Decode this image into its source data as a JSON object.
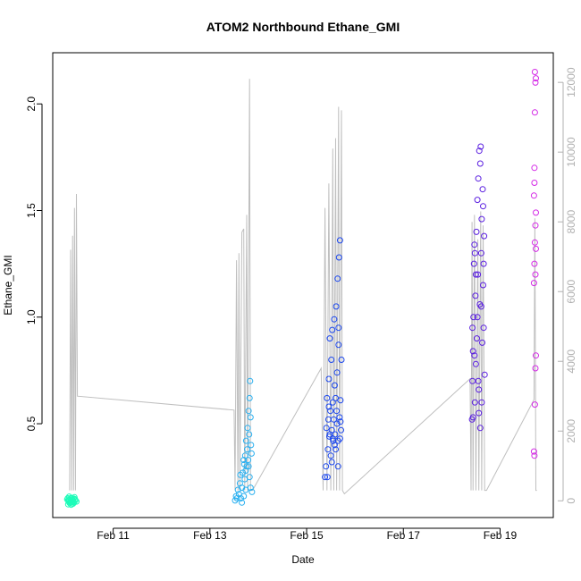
{
  "chart_data": {
    "type": "scatter",
    "title": "ATOM2 Northbound Ethane_GMI",
    "xlabel": "Date",
    "ylabel": "Ethane_GMI",
    "x_ticks": [
      "Feb 11",
      "Feb 13",
      "Feb 15",
      "Feb 17",
      "Feb 19"
    ],
    "x_tick_values": [
      11,
      13,
      15,
      17,
      19
    ],
    "xlim": [
      9.75,
      20.1
    ],
    "y_ticks": [
      "0.5",
      "1.0",
      "1.5",
      "2.0"
    ],
    "y_tick_values": [
      0.5,
      1.0,
      1.5,
      2.0
    ],
    "ylim": [
      0.06,
      2.24
    ],
    "y2_ticks": [
      "0",
      "2000",
      "4000",
      "6000",
      "8000",
      "10000",
      "12000"
    ],
    "y2_tick_values": [
      0,
      2000,
      4000,
      6000,
      8000,
      10000,
      12000
    ],
    "y2lim": [
      -480,
      12850
    ],
    "altitude_trace": [
      [
        10.1,
        300
      ],
      [
        10.12,
        7200
      ],
      [
        10.14,
        300
      ],
      [
        10.16,
        7600
      ],
      [
        10.18,
        300
      ],
      [
        10.2,
        8400
      ],
      [
        10.22,
        300
      ],
      [
        10.24,
        8800
      ],
      [
        10.26,
        3000
      ],
      [
        13.5,
        2600
      ],
      [
        13.52,
        300
      ],
      [
        13.55,
        6900
      ],
      [
        13.58,
        300
      ],
      [
        13.6,
        7100
      ],
      [
        13.62,
        300
      ],
      [
        13.66,
        7700
      ],
      [
        13.7,
        7800
      ],
      [
        13.72,
        300
      ],
      [
        13.76,
        8200
      ],
      [
        13.78,
        300
      ],
      [
        13.82,
        12100
      ],
      [
        13.84,
        300
      ],
      [
        13.88,
        300
      ],
      [
        15.3,
        3800
      ],
      [
        15.34,
        300
      ],
      [
        15.38,
        8400
      ],
      [
        15.42,
        300
      ],
      [
        15.46,
        9100
      ],
      [
        15.5,
        300
      ],
      [
        15.54,
        10100
      ],
      [
        15.56,
        300
      ],
      [
        15.6,
        10400
      ],
      [
        15.62,
        300
      ],
      [
        15.66,
        11300
      ],
      [
        15.68,
        300
      ],
      [
        15.72,
        11200
      ],
      [
        15.74,
        300
      ],
      [
        15.78,
        200
      ],
      [
        18.38,
        3500
      ],
      [
        18.4,
        300
      ],
      [
        18.42,
        8000
      ],
      [
        18.44,
        300
      ],
      [
        18.47,
        8200
      ],
      [
        18.5,
        300
      ],
      [
        18.54,
        7500
      ],
      [
        18.56,
        300
      ],
      [
        18.6,
        8300
      ],
      [
        18.62,
        300
      ],
      [
        18.65,
        7900
      ],
      [
        18.68,
        300
      ],
      [
        18.72,
        300
      ],
      [
        19.7,
        2900
      ],
      [
        19.72,
        8100
      ],
      [
        19.74,
        300
      ],
      [
        19.76,
        300
      ]
    ],
    "series": [
      {
        "color": "#1dfcb9",
        "points": [
          [
            10.05,
            0.145
          ],
          [
            10.06,
            0.15
          ],
          [
            10.07,
            0.14
          ],
          [
            10.08,
            0.135
          ],
          [
            10.09,
            0.142
          ],
          [
            10.1,
            0.128
          ],
          [
            10.11,
            0.148
          ],
          [
            10.12,
            0.138
          ],
          [
            10.13,
            0.152
          ],
          [
            10.14,
            0.133
          ],
          [
            10.15,
            0.126
          ],
          [
            10.16,
            0.144
          ],
          [
            10.17,
            0.137
          ],
          [
            10.18,
            0.149
          ],
          [
            10.19,
            0.131
          ],
          [
            10.2,
            0.155
          ],
          [
            10.22,
            0.141
          ],
          [
            10.24,
            0.135
          ],
          [
            10.07,
            0.122
          ],
          [
            10.09,
            0.158
          ],
          [
            10.13,
            0.12
          ],
          [
            10.17,
            0.125
          ],
          [
            10.21,
            0.146
          ],
          [
            10.11,
            0.132
          ],
          [
            10.15,
            0.15
          ]
        ]
      },
      {
        "color": "#2ab0f0",
        "points": [
          [
            13.52,
            0.14
          ],
          [
            13.54,
            0.16
          ],
          [
            13.56,
            0.15
          ],
          [
            13.58,
            0.19
          ],
          [
            13.6,
            0.17
          ],
          [
            13.62,
            0.22
          ],
          [
            13.63,
            0.26
          ],
          [
            13.64,
            0.15
          ],
          [
            13.66,
            0.2
          ],
          [
            13.68,
            0.27
          ],
          [
            13.7,
            0.16
          ],
          [
            13.71,
            0.31
          ],
          [
            13.72,
            0.24
          ],
          [
            13.73,
            0.35
          ],
          [
            13.74,
            0.28
          ],
          [
            13.75,
            0.42
          ],
          [
            13.76,
            0.3
          ],
          [
            13.77,
            0.38
          ],
          [
            13.78,
            0.48
          ],
          [
            13.79,
            0.33
          ],
          [
            13.8,
            0.56
          ],
          [
            13.81,
            0.45
          ],
          [
            13.82,
            0.62
          ],
          [
            13.83,
            0.7
          ],
          [
            13.84,
            0.53
          ],
          [
            13.85,
            0.4
          ],
          [
            13.86,
            0.36
          ],
          [
            13.87,
            0.18
          ],
          [
            13.7,
            0.33
          ],
          [
            13.74,
            0.19
          ],
          [
            13.66,
            0.13
          ],
          [
            13.8,
            0.3
          ],
          [
            13.82,
            0.25
          ],
          [
            13.84,
            0.2
          ]
        ]
      },
      {
        "color": "#1a46ee",
        "points": [
          [
            15.38,
            0.25
          ],
          [
            15.4,
            0.3
          ],
          [
            15.41,
            0.48
          ],
          [
            15.42,
            0.62
          ],
          [
            15.44,
            0.38
          ],
          [
            15.45,
            0.52
          ],
          [
            15.46,
            0.71
          ],
          [
            15.47,
            0.44
          ],
          [
            15.48,
            0.9
          ],
          [
            15.49,
            0.56
          ],
          [
            15.5,
            0.35
          ],
          [
            15.51,
            0.8
          ],
          [
            15.52,
            0.47
          ],
          [
            15.53,
            0.94
          ],
          [
            15.54,
            0.6
          ],
          [
            15.55,
            0.42
          ],
          [
            15.56,
            0.52
          ],
          [
            15.57,
            0.99
          ],
          [
            15.58,
            0.68
          ],
          [
            15.59,
            0.45
          ],
          [
            15.6,
            0.38
          ],
          [
            15.61,
            1.05
          ],
          [
            15.62,
            0.56
          ],
          [
            15.63,
            0.5
          ],
          [
            15.64,
            1.18
          ],
          [
            15.65,
            0.42
          ],
          [
            15.66,
            0.87
          ],
          [
            15.67,
            1.28
          ],
          [
            15.68,
            0.53
          ],
          [
            15.69,
            1.36
          ],
          [
            15.7,
            0.61
          ],
          [
            15.71,
            0.47
          ],
          [
            15.72,
            0.8
          ],
          [
            15.43,
            0.25
          ],
          [
            15.52,
            0.32
          ],
          [
            15.58,
            0.4
          ],
          [
            15.63,
            0.74
          ],
          [
            15.66,
            0.95
          ],
          [
            15.69,
            0.43
          ],
          [
            15.46,
            0.58
          ],
          [
            15.54,
            0.43
          ],
          [
            15.6,
            0.62
          ],
          [
            15.65,
            0.3
          ],
          [
            15.7,
            0.51
          ],
          [
            15.48,
            0.45
          ]
        ]
      },
      {
        "color": "#5a1ee0",
        "points": [
          [
            18.42,
            0.52
          ],
          [
            18.43,
            0.7
          ],
          [
            18.44,
            0.84
          ],
          [
            18.45,
            1.0
          ],
          [
            18.46,
            1.25
          ],
          [
            18.47,
            1.34
          ],
          [
            18.48,
            0.6
          ],
          [
            18.49,
            1.1
          ],
          [
            18.5,
            0.78
          ],
          [
            18.51,
            1.4
          ],
          [
            18.52,
            0.9
          ],
          [
            18.53,
            1.55
          ],
          [
            18.54,
            1.2
          ],
          [
            18.55,
            1.65
          ],
          [
            18.56,
            0.66
          ],
          [
            18.57,
            1.78
          ],
          [
            18.58,
            1.06
          ],
          [
            18.59,
            0.48
          ],
          [
            18.6,
            1.8
          ],
          [
            18.61,
            1.3
          ],
          [
            18.62,
            1.46
          ],
          [
            18.63,
            0.88
          ],
          [
            18.64,
            1.6
          ],
          [
            18.65,
            1.15
          ],
          [
            18.66,
            0.95
          ],
          [
            18.67,
            1.38
          ],
          [
            18.68,
            0.73
          ],
          [
            18.44,
            0.53
          ],
          [
            18.47,
            0.82
          ],
          [
            18.5,
            1.2
          ],
          [
            18.53,
            1.0
          ],
          [
            18.56,
            0.55
          ],
          [
            18.59,
            1.72
          ],
          [
            18.62,
            0.6
          ],
          [
            18.65,
            1.52
          ],
          [
            18.48,
            1.3
          ],
          [
            18.55,
            0.7
          ],
          [
            18.61,
            1.05
          ],
          [
            18.66,
            1.25
          ],
          [
            18.43,
            0.95
          ]
        ]
      },
      {
        "color": "#d42ae6",
        "points": [
          [
            19.7,
            0.37
          ],
          [
            19.71,
            0.35
          ],
          [
            19.72,
            0.59
          ],
          [
            19.73,
            0.76
          ],
          [
            19.74,
            0.82
          ],
          [
            19.7,
            1.16
          ],
          [
            19.71,
            1.25
          ],
          [
            19.72,
            1.35
          ],
          [
            19.73,
            1.43
          ],
          [
            19.74,
            1.49
          ],
          [
            19.7,
            1.57
          ],
          [
            19.71,
            1.63
          ],
          [
            19.72,
            1.96
          ],
          [
            19.73,
            2.1
          ],
          [
            19.74,
            2.12
          ],
          [
            19.72,
            2.15
          ],
          [
            19.71,
            1.7
          ],
          [
            19.73,
            1.2
          ],
          [
            19.74,
            1.32
          ]
        ]
      }
    ],
    "colors": {
      "altitude_line": "#bfbfbf",
      "axis": "#000000",
      "y2_axis": "#b0b0b0"
    }
  }
}
